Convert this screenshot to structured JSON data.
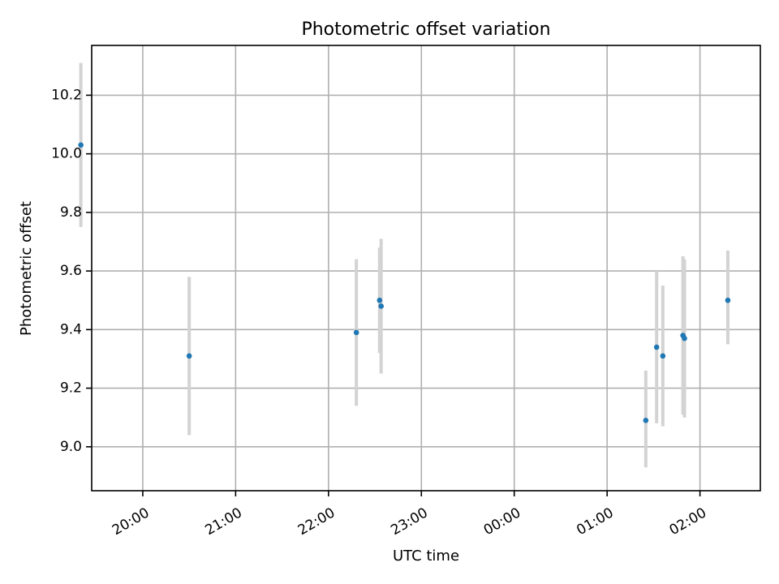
{
  "chart_data": {
    "type": "scatter",
    "title": "Photometric offset variation",
    "xlabel": "UTC time",
    "ylabel": "Photometric offset",
    "x_axis": {
      "kind": "time",
      "range": [
        "19:27",
        "02:39"
      ],
      "ticks": [
        "20:00",
        "21:00",
        "22:00",
        "23:00",
        "00:00",
        "01:00",
        "02:00"
      ]
    },
    "y_axis": {
      "range": [
        8.85,
        10.37
      ],
      "ticks": [
        "9.0",
        "9.2",
        "9.4",
        "9.6",
        "9.8",
        "10.0",
        "10.2"
      ]
    },
    "grid": true,
    "marker_color": "#1f77b4",
    "errorbar_color": "#d3d3d3",
    "series": [
      {
        "points": [
          {
            "x": "19:20",
            "y": 10.03,
            "low": 9.75,
            "high": 10.31
          },
          {
            "x": "20:30",
            "y": 9.31,
            "low": 9.04,
            "high": 9.58
          },
          {
            "x": "22:18",
            "y": 9.39,
            "low": 9.14,
            "high": 9.64
          },
          {
            "x": "22:33",
            "y": 9.5,
            "low": 9.32,
            "high": 9.68
          },
          {
            "x": "22:34",
            "y": 9.48,
            "low": 9.25,
            "high": 9.71
          },
          {
            "x": "01:25",
            "y": 9.09,
            "low": 8.93,
            "high": 9.26
          },
          {
            "x": "01:32",
            "y": 9.34,
            "low": 9.08,
            "high": 9.6
          },
          {
            "x": "01:36",
            "y": 9.31,
            "low": 9.07,
            "high": 9.55
          },
          {
            "x": "01:49",
            "y": 9.38,
            "low": 9.11,
            "high": 9.65
          },
          {
            "x": "01:50",
            "y": 9.37,
            "low": 9.1,
            "high": 9.64
          },
          {
            "x": "02:18",
            "y": 9.5,
            "low": 9.35,
            "high": 9.67
          }
        ]
      }
    ]
  }
}
